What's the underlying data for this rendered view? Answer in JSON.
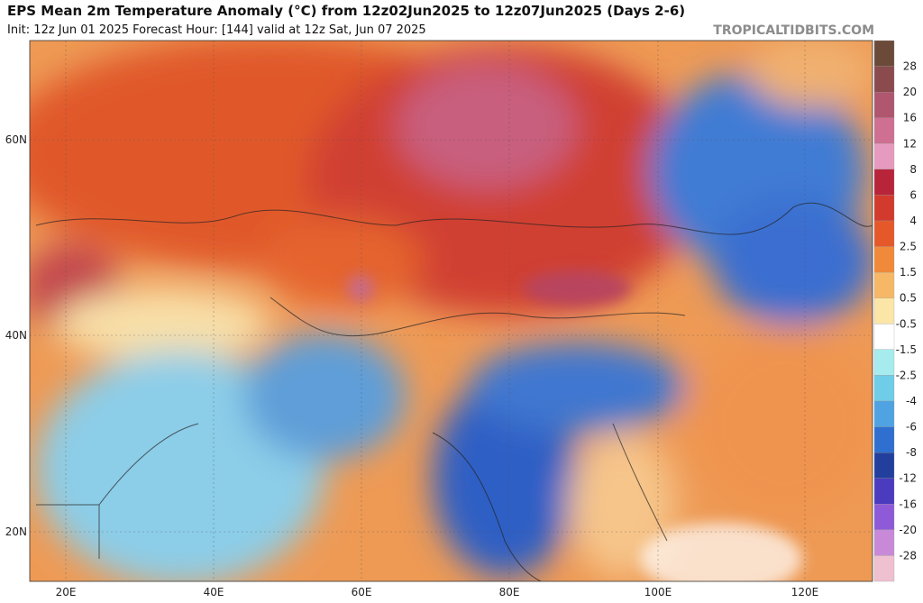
{
  "header": {
    "title": "EPS Mean 2m Temperature Anomaly (°C) from 12z02Jun2025 to 12z07Jun2025 (Days 2-6)",
    "subtitle": "Init: 12z Jun 01 2025   Forecast Hour: [144]   valid at 12z Sat, Jun 07 2025",
    "watermark": "TROPICALTIDBITS.COM"
  },
  "map": {
    "lat_labels": [
      "60N",
      "40N",
      "20N"
    ],
    "lon_labels": [
      "20E",
      "40E",
      "60E",
      "80E",
      "100E",
      "120E"
    ]
  },
  "colorbar": {
    "labels": [
      "28",
      "20",
      "16",
      "12",
      "8",
      "6",
      "4",
      "2.5",
      "1.5",
      "0.5",
      "-0.5",
      "-1.5",
      "-2.5",
      "-4",
      "-6",
      "-8",
      "-12",
      "-16",
      "-20",
      "-28"
    ],
    "colors": [
      "#6b4a3a",
      "#8a4a4e",
      "#b0566e",
      "#cf6f92",
      "#e79ac0",
      "#b8243a",
      "#d23a2e",
      "#e5582a",
      "#f08a3a",
      "#f6b866",
      "#fbe6a8",
      "#ffffff",
      "#a6ecee",
      "#6fcde8",
      "#4fa3e2",
      "#2f6fcf",
      "#233f9e",
      "#4b3bbf",
      "#8e5ad8",
      "#c88ad8",
      "#efc0d0"
    ]
  }
}
